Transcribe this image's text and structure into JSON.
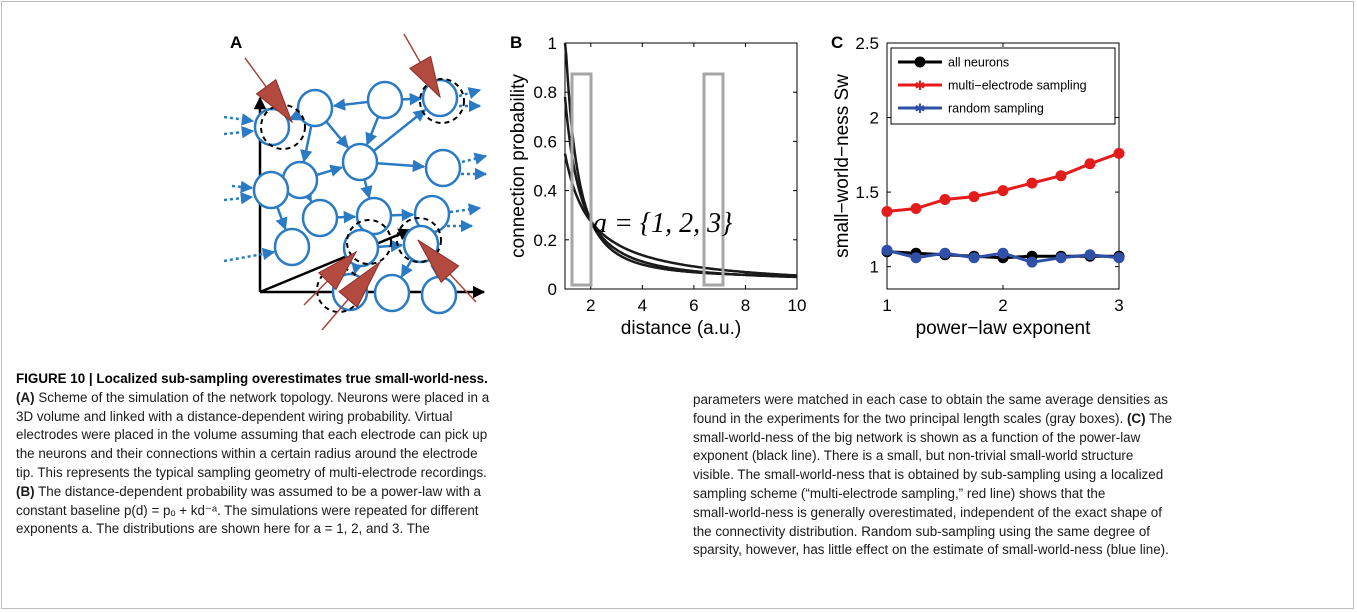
{
  "figure": {
    "panel_labels": [
      "A",
      "B",
      "C"
    ],
    "panel_b": {
      "ylabel": "connection probability",
      "xlabel": "distance (a.u.)",
      "x_ticks": [
        "2",
        "4",
        "6",
        "8",
        "10"
      ],
      "y_ticks": [
        "0",
        "0.2",
        "0.4",
        "0.6",
        "0.8",
        "1"
      ],
      "formula": "a = {1, 2, 3}"
    },
    "panel_c": {
      "ylabel": "small−world−ness Sw",
      "xlabel": "power−law exponent",
      "x_ticks": [
        "1",
        "2",
        "3"
      ],
      "y_ticks": [
        "1",
        "1.5",
        "2",
        "2.5"
      ]
    }
  },
  "chart_data": {
    "type": "line",
    "xlabel": "power−law exponent",
    "ylabel": "small−world−ness Sw",
    "xlim": [
      1,
      3
    ],
    "ylim": [
      0.85,
      2.5
    ],
    "legend": "top-right",
    "x": [
      1.0,
      1.25,
      1.5,
      1.75,
      2.0,
      2.25,
      2.5,
      2.75,
      3.0
    ],
    "series": [
      {
        "name": "all neurons",
        "color": "#000000",
        "values": [
          1.1,
          1.09,
          1.08,
          1.07,
          1.06,
          1.07,
          1.07,
          1.07,
          1.07
        ]
      },
      {
        "name": "multi−electrode sampling",
        "color": "#e31b1b",
        "values": [
          1.37,
          1.39,
          1.45,
          1.47,
          1.51,
          1.56,
          1.61,
          1.69,
          1.76
        ]
      },
      {
        "name": "random sampling",
        "color": "#3050a8",
        "values": [
          1.11,
          1.06,
          1.09,
          1.06,
          1.09,
          1.03,
          1.06,
          1.08,
          1.06
        ]
      }
    ]
  },
  "caption": {
    "title": "FIGURE 10 | Localized sub-sampling overestimates true small-world-ness.",
    "left_lines": [
      [
        "(A)",
        " Scheme of the simulation of the network topology. Neurons were placed in a"
      ],
      [
        "",
        "3D volume and linked with a distance-dependent wiring probability. Virtual"
      ],
      [
        "",
        "electrodes were placed in the volume assuming that each electrode can pick up"
      ],
      [
        "",
        "the neurons and their connections within a certain radius around the electrode"
      ],
      [
        "",
        "tip. This represents the typical sampling geometry of multi-electrode recordings."
      ],
      [
        "(B)",
        " The distance-dependent probability was assumed to be a power-law with a"
      ],
      [
        "",
        "constant baseline p(d) = pₒ + kd⁻ᵃ. The simulations were repeated for different"
      ],
      [
        "",
        "exponents a. The distributions are shown here for a = 1, 2, and 3. The"
      ]
    ],
    "right_lines": [
      [
        "",
        "parameters were matched in each case to obtain the same average densities as"
      ],
      [
        "",
        "found in the experiments for the two principal length scales (gray boxes). "
      ],
      [
        "(C)",
        " The"
      ],
      [
        "",
        "small-world-ness of the big network is shown as a function of the power-law"
      ],
      [
        "",
        "exponent (black line). There is a small, but non-trivial small-world structure"
      ],
      [
        "",
        "visible. The small-world-ness that is obtained by sub-sampling using a localized"
      ],
      [
        "",
        "sampling scheme (“multi-electrode sampling,” red line) shows that the"
      ],
      [
        "",
        "small-world-ness is generally overestimated, independent of the exact shape of"
      ],
      [
        "",
        "the connectivity distribution. Random sub-sampling using the same degree of"
      ],
      [
        "",
        "sparsity, however, has little effect on the estimate of small-world-ness (blue line)."
      ]
    ]
  }
}
